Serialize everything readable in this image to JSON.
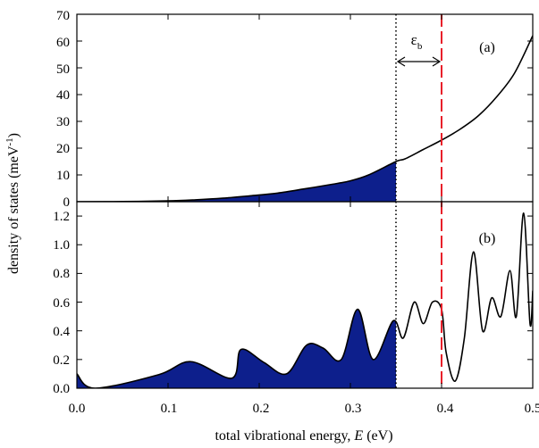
{
  "chart_data": {
    "type": "line",
    "xlabel_main": "total vibrational energy, ",
    "xlabel_var": "E",
    "xlabel_unit": " (eV)",
    "ylabel_main": "density of states (meV",
    "ylabel_sup": "-1",
    "ylabel_close": ")",
    "xlim": [
      0,
      0.5
    ],
    "x_ticks": [
      "0.0",
      "0.1",
      "0.2",
      "0.3",
      "0.4",
      "0.5"
    ],
    "shaded_upto": 0.35,
    "dotted_line_x": 0.35,
    "dashed_line_x": 0.4,
    "dashed_line_color": "#e8202a",
    "fill_color": "#0d1f8c",
    "annotation": {
      "symbol": "ε",
      "subscript": "b",
      "from": 0.35,
      "to": 0.4
    },
    "panels": [
      {
        "label": "(a)",
        "ylim": [
          0,
          70
        ],
        "y_ticks": [
          "0",
          "10",
          "20",
          "30",
          "40",
          "50",
          "60",
          "70"
        ],
        "y_tick_values": [
          0,
          10,
          20,
          30,
          40,
          50,
          60,
          70
        ],
        "x": [
          0.0,
          0.05,
          0.1,
          0.13,
          0.16,
          0.19,
          0.22,
          0.25,
          0.28,
          0.3,
          0.32,
          0.35,
          0.36,
          0.38,
          0.4,
          0.42,
          0.44,
          0.46,
          0.48,
          0.5
        ],
        "y": [
          0.0,
          0.05,
          0.3,
          0.7,
          1.3,
          2.2,
          3.2,
          4.8,
          6.5,
          7.8,
          10.0,
          15.0,
          16.0,
          19.5,
          23.0,
          27.0,
          32.0,
          39.0,
          48.0,
          62.0
        ]
      },
      {
        "label": "(b)",
        "ylim": [
          0,
          1.3
        ],
        "y_ticks": [
          "0.0",
          "0.2",
          "0.4",
          "0.6",
          "0.8",
          "1.0",
          "1.2"
        ],
        "y_tick_values": [
          0,
          0.2,
          0.4,
          0.6,
          0.8,
          1.0,
          1.2
        ],
        "x": [
          0.0,
          0.02,
          0.09,
          0.125,
          0.17,
          0.18,
          0.205,
          0.23,
          0.252,
          0.27,
          0.29,
          0.308,
          0.325,
          0.347,
          0.358,
          0.37,
          0.38,
          0.39,
          0.4,
          0.405,
          0.415,
          0.425,
          0.435,
          0.445,
          0.455,
          0.465,
          0.475,
          0.482,
          0.49,
          0.497,
          0.5
        ],
        "y": [
          0.1,
          0.0,
          0.095,
          0.185,
          0.07,
          0.27,
          0.18,
          0.1,
          0.3,
          0.28,
          0.2,
          0.55,
          0.2,
          0.47,
          0.35,
          0.6,
          0.45,
          0.6,
          0.55,
          0.25,
          0.05,
          0.35,
          0.95,
          0.4,
          0.63,
          0.5,
          0.82,
          0.5,
          1.22,
          0.45,
          0.68
        ]
      }
    ]
  }
}
